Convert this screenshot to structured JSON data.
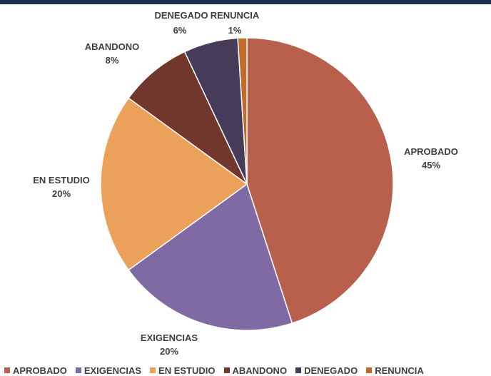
{
  "chart_data": {
    "type": "pie",
    "title": "",
    "categories": [
      "APROBADO",
      "EXIGENCIAS",
      "EN ESTUDIO",
      "ABANDONO",
      "DENEGADO",
      "RENUNCIA"
    ],
    "values": [
      45,
      20,
      20,
      8,
      6,
      1
    ],
    "value_labels": [
      "45%",
      "20%",
      "20%",
      "8%",
      "6%",
      "1%"
    ],
    "colors": [
      "#b9604c",
      "#7f6aa3",
      "#eba159",
      "#72372c",
      "#473b5a",
      "#c16a29"
    ],
    "legend": "bottom"
  }
}
